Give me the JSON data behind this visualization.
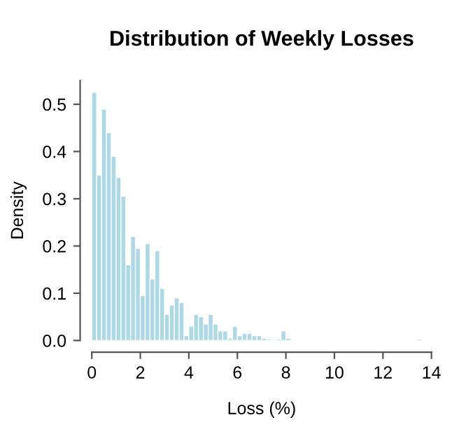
{
  "chart_data": {
    "type": "histogram",
    "title": "Distribution of Weekly Losses",
    "xlabel": "Loss (%)",
    "ylabel": "Density",
    "color": "#add8e6",
    "bins": [
      0,
      0.2,
      0.4,
      0.6,
      0.8,
      1.0,
      1.2,
      1.4,
      1.6,
      1.8,
      2.0,
      2.2,
      2.4,
      2.6,
      2.8,
      3.0,
      3.2,
      3.4,
      3.6,
      3.8,
      4.0,
      4.2,
      4.4,
      4.6,
      4.8,
      5.0,
      5.2,
      5.4,
      5.6,
      5.8,
      6.0,
      6.2,
      6.4,
      6.6,
      6.8,
      7.0,
      7.2,
      7.4,
      7.6,
      7.8,
      8.0,
      8.2,
      8.4,
      8.6,
      8.8,
      9.0,
      9.2,
      9.4,
      9.6,
      9.8,
      10.0,
      10.2,
      10.4,
      10.6,
      10.8,
      11.0,
      11.2,
      11.4,
      11.6,
      11.8,
      12.0,
      12.2,
      12.4,
      12.6,
      12.8,
      13.0,
      13.2,
      13.4,
      13.6
    ],
    "values": [
      0.525,
      0.35,
      0.49,
      0.44,
      0.39,
      0.345,
      0.305,
      0.16,
      0.22,
      0.195,
      0.095,
      0.205,
      0.13,
      0.19,
      0.11,
      0.055,
      0.075,
      0.09,
      0.08,
      0.01,
      0.03,
      0.055,
      0.05,
      0.035,
      0.055,
      0.035,
      0.02,
      0.02,
      0.005,
      0.03,
      0.01,
      0.015,
      0.015,
      0.01,
      0.01,
      0.005,
      0.003,
      0,
      0.003,
      0.02,
      0.005,
      0,
      0,
      0,
      0,
      0,
      0,
      0,
      0,
      0,
      0,
      0,
      0,
      0,
      0,
      0,
      0,
      0,
      0,
      0,
      0,
      0,
      0,
      0,
      0,
      0,
      0,
      0.003
    ],
    "xlim": [
      0,
      14
    ],
    "xticks": [
      0,
      2,
      4,
      6,
      8,
      10,
      12,
      14
    ],
    "ylim": [
      0,
      0.55
    ],
    "yticks": [
      {
        "value": 0,
        "label": "0.0"
      },
      {
        "value": 0.1,
        "label": "0.1"
      },
      {
        "value": 0.2,
        "label": "0.2"
      },
      {
        "value": 0.3,
        "label": "0.3"
      },
      {
        "value": 0.4,
        "label": "0.4"
      },
      {
        "value": 0.5,
        "label": "0.5"
      }
    ],
    "grid": false
  }
}
